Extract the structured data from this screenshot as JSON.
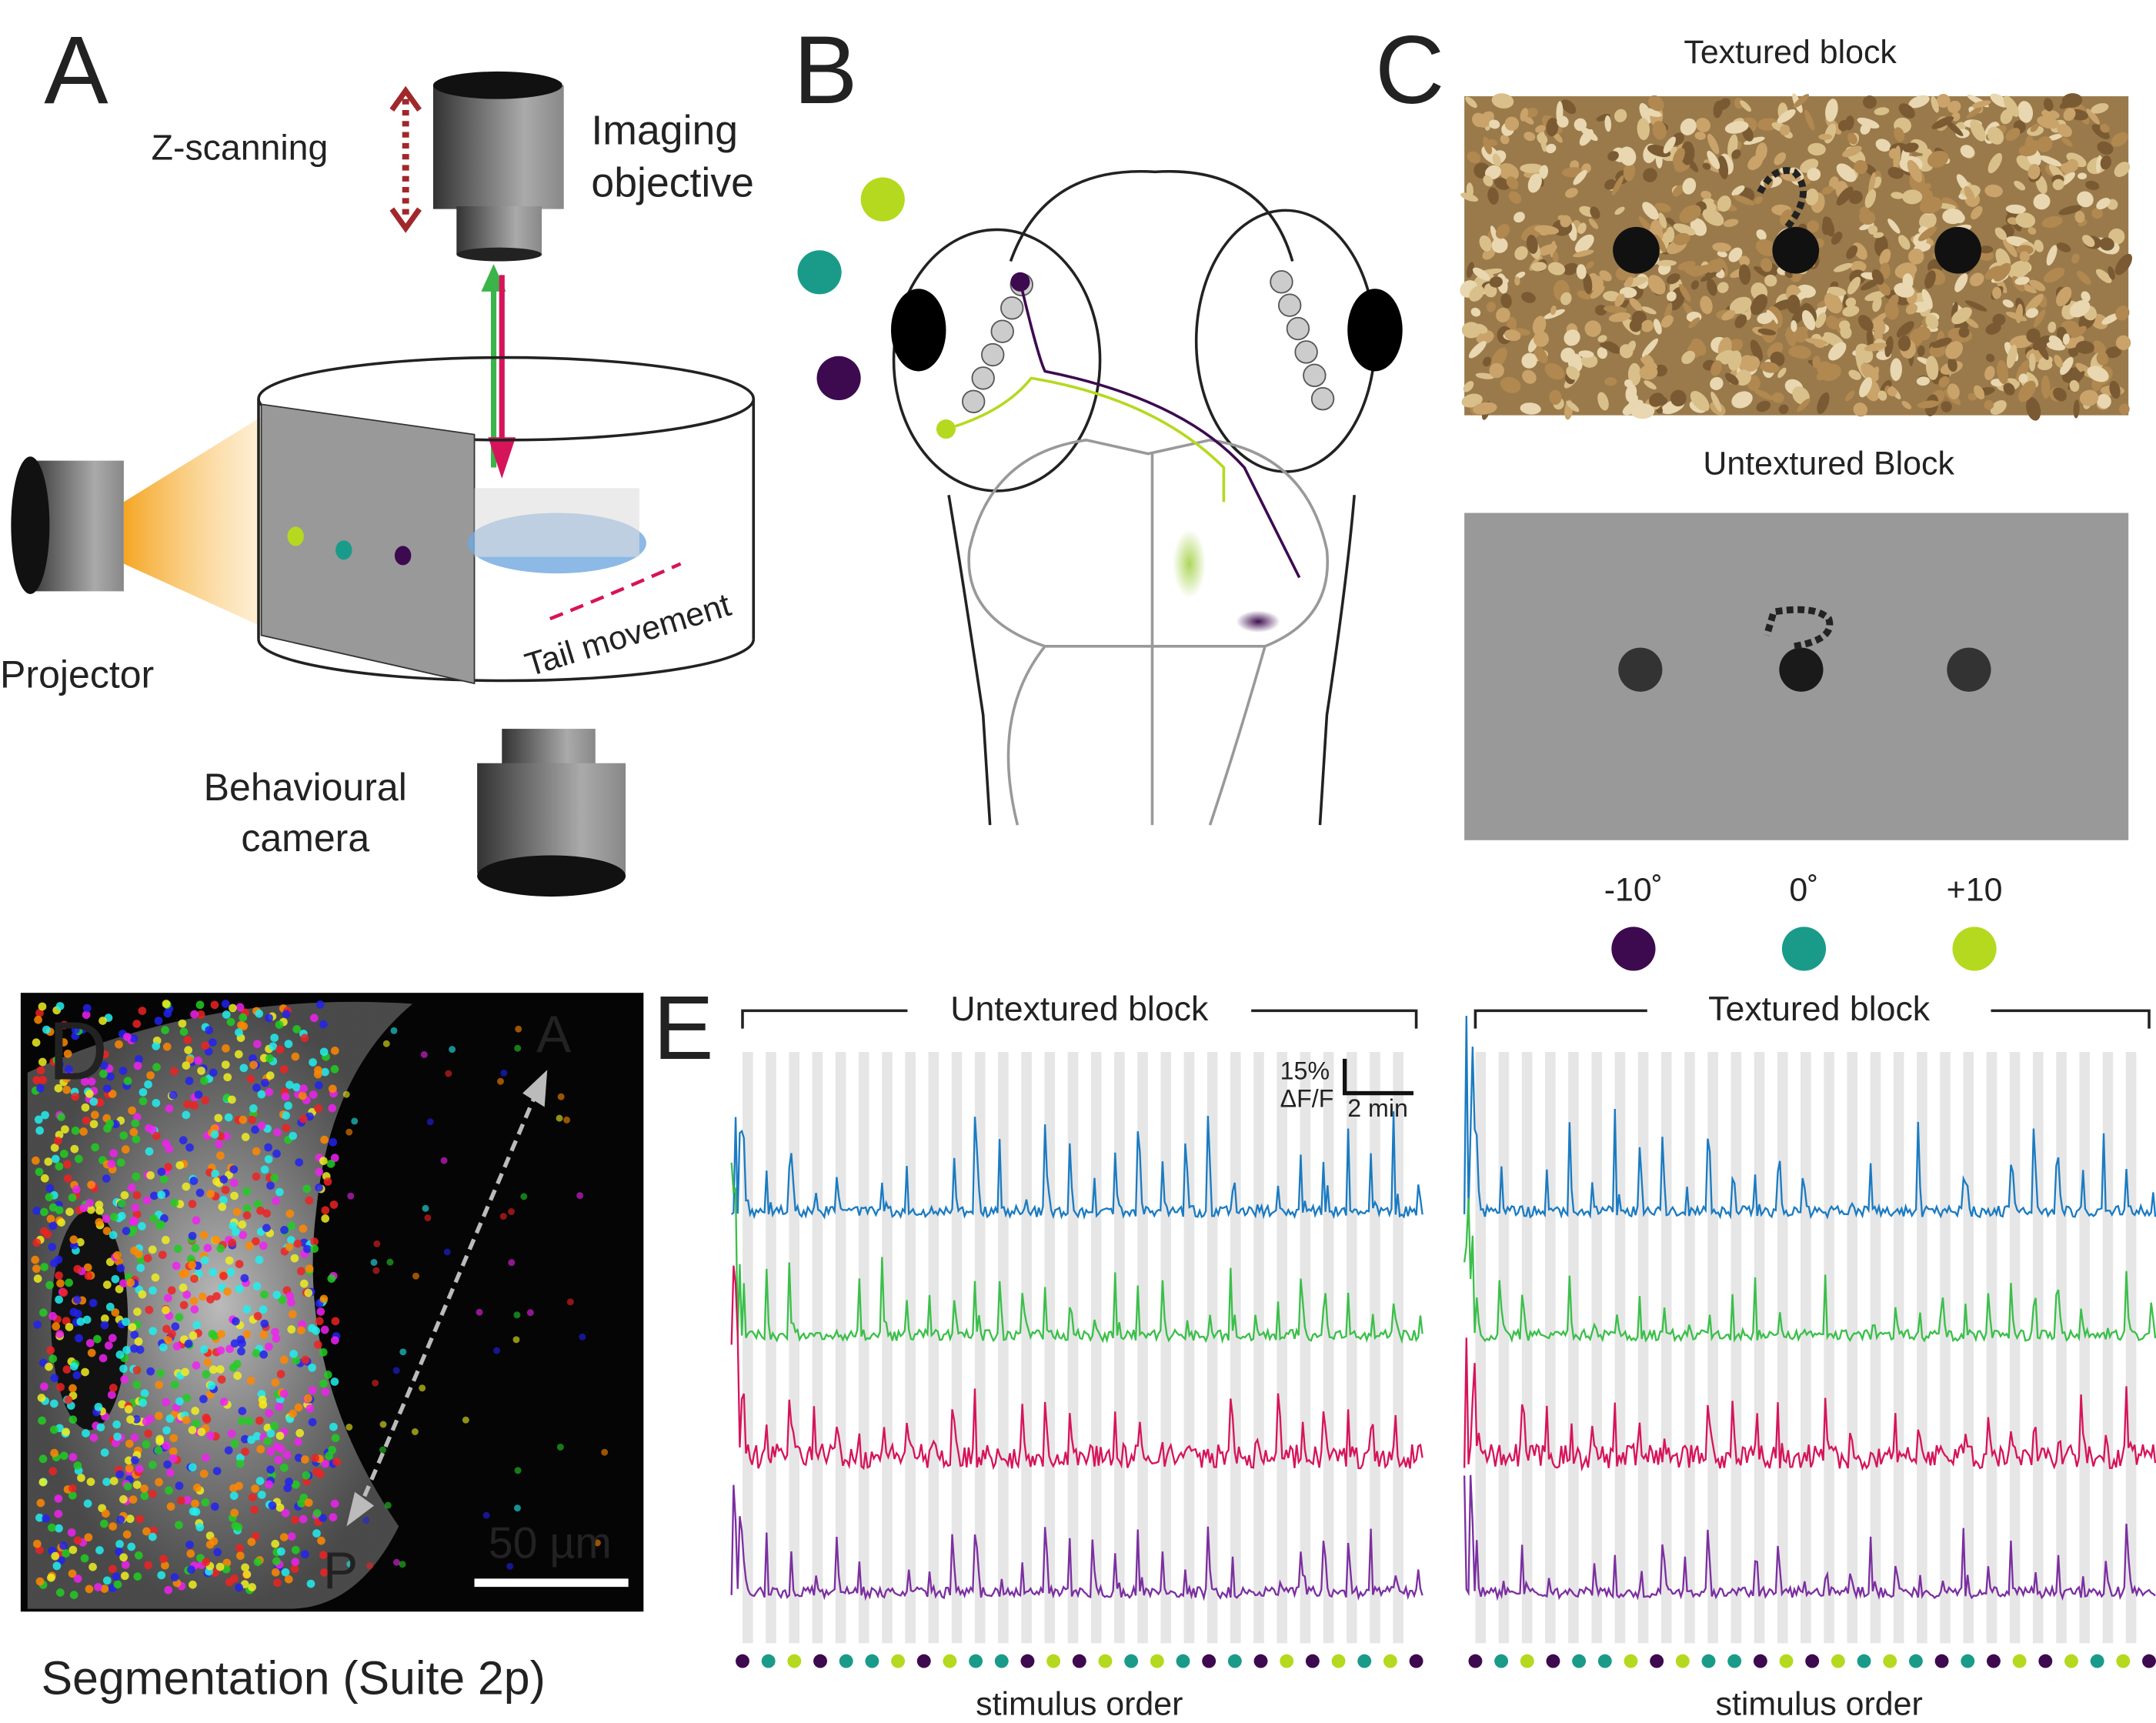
{
  "panel_a": {
    "label": "A",
    "z_scanning": "Z-scanning",
    "objective_lines": [
      "Imaging",
      "objective"
    ],
    "projector": "Projector",
    "tail_movement": "Tail movement",
    "camera_lines": [
      "Behavioural",
      "camera"
    ]
  },
  "panel_b": {
    "label": "B"
  },
  "panel_c": {
    "label": "C",
    "textured_title": "Textured block",
    "untextured_title": "Untextured Block",
    "angles": [
      "-10˚",
      "0˚",
      "+10"
    ]
  },
  "panel_d": {
    "label": "D",
    "anterior": "A",
    "posterior": "P",
    "scale_bar": "50 µm",
    "caption": "Segmentation (Suite 2p)"
  },
  "panel_e": {
    "label": "E",
    "left_block": "Untextured block",
    "right_block": "Textured block",
    "scale_y": "15%",
    "scale_y_unit": "ΔF/F",
    "scale_x": "2 min",
    "x_label_left": "stimulus order",
    "x_label_right": "stimulus order"
  }
}
